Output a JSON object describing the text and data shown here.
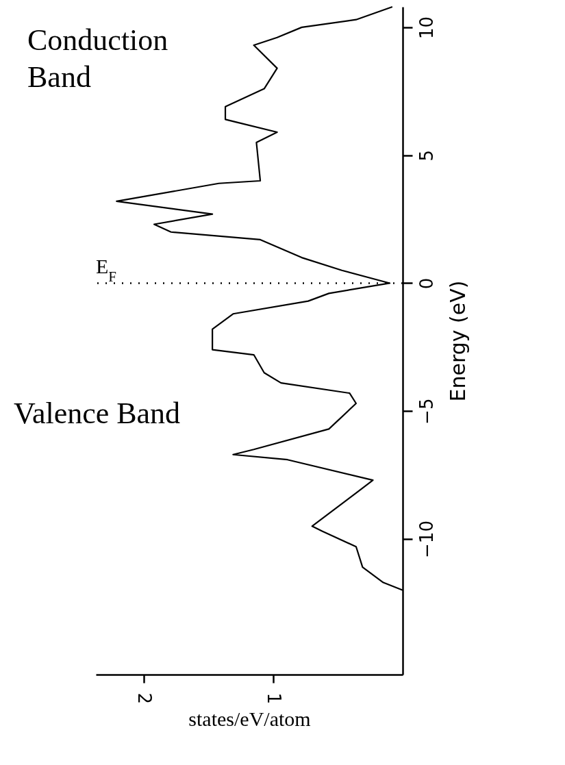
{
  "chart_data": {
    "type": "line",
    "xlabel": "states/eV/atom",
    "ylabel": "Energy (eV)",
    "xlim": [
      2.37,
      0
    ],
    "ylim": [
      -15.3,
      10.8
    ],
    "xticks": [
      2,
      1
    ],
    "yticks": [
      {
        "value": -10,
        "label": "−10"
      },
      {
        "value": -5,
        "label": "−5"
      },
      0,
      5,
      10
    ],
    "x": [
      0.08,
      0.36,
      0.78,
      0.97,
      1.15,
      0.97,
      1.07,
      1.37,
      1.37,
      1.29,
      0.97,
      1.13,
      1.1,
      1.42,
      2.21,
      1.47,
      1.92,
      1.79,
      1.1,
      0.78,
      0.47,
      0.1,
      0.57,
      0.73,
      1.31,
      1.47,
      1.47,
      1.15,
      1.07,
      0.94,
      0.41,
      0.36,
      0.57,
      1.15,
      1.31,
      0.89,
      0.23,
      0.36,
      0.7,
      0.62,
      0.36,
      0.31,
      0.15,
      0.0
    ],
    "series": [
      {
        "color": "#000000",
        "values": [
          10.8,
          10.3,
          10.0,
          9.6,
          9.3,
          8.4,
          7.6,
          6.9,
          6.4,
          6.3,
          5.9,
          5.5,
          4.0,
          3.9,
          3.2,
          2.7,
          2.3,
          2.0,
          1.7,
          1.0,
          0.5,
          0.0,
          -0.4,
          -0.7,
          -1.2,
          -1.8,
          -2.6,
          -2.8,
          -3.5,
          -3.9,
          -4.3,
          -4.7,
          -5.7,
          -6.5,
          -6.7,
          -6.9,
          -7.7,
          -8.2,
          -9.5,
          -9.7,
          -10.3,
          -11.1,
          -11.7,
          -12.0
        ]
      }
    ],
    "ref_lines": [
      {
        "axis": "y",
        "value": 0,
        "label": "E$_{F}$",
        "line_style": "dotted"
      }
    ],
    "annotations": [
      "Conduction Band",
      "Valence Band"
    ],
    "marker": "none",
    "line_style": "solid"
  }
}
